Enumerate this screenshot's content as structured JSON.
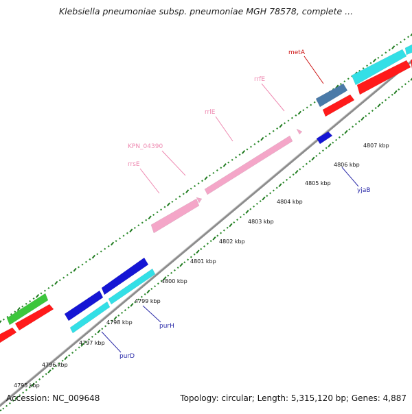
{
  "title": "Klebsiella pneumoniae subsp. pneumoniae MGH 78578, complete ...",
  "footer": {
    "accession": "Accession: NC_009648",
    "summary": "Topology: circular; Length: 5,315,120 bp; Genes: 4,887"
  },
  "colors": {
    "backbone": "#8c8c8c",
    "tick_major": "#1f7a1f",
    "tick_minor": "#2e8b2e",
    "rna": "#f4a6c8",
    "red": "#ff1a1a",
    "cyan": "#33dfe6",
    "blue": "#1515d4",
    "green": "#3cc63c",
    "steel": "#4a7aa8",
    "label_pink": "#ee88b0",
    "label_blue": "#2a2aa8",
    "label_red": "#cc1111"
  },
  "scale_labels": [
    {
      "text": "4795 kbp",
      "kbp": 4795
    },
    {
      "text": "4796 kbp",
      "kbp": 4796
    },
    {
      "text": "4797 kbp",
      "kbp": 4797
    },
    {
      "text": "4798 kbp",
      "kbp": 4798
    },
    {
      "text": "4799 kbp",
      "kbp": 4799
    },
    {
      "text": "4800 kbp",
      "kbp": 4800
    },
    {
      "text": "4801 kbp",
      "kbp": 4801
    },
    {
      "text": "4802 kbp",
      "kbp": 4802
    },
    {
      "text": "4803 kbp",
      "kbp": 4803
    },
    {
      "text": "4804 kbp",
      "kbp": 4804
    },
    {
      "text": "4805 kbp",
      "kbp": 4805
    },
    {
      "text": "4806 kbp",
      "kbp": 4806
    },
    {
      "text": "4807 kbp",
      "kbp": 4807
    }
  ],
  "gene_labels": [
    {
      "name": "metA",
      "kind": "red"
    },
    {
      "name": "rrfE",
      "kind": "pink"
    },
    {
      "name": "rrlE",
      "kind": "pink"
    },
    {
      "name": "KPN_04390",
      "kind": "pink"
    },
    {
      "name": "rrsE",
      "kind": "pink"
    },
    {
      "name": "yjaB",
      "kind": "blue"
    },
    {
      "name": "purH",
      "kind": "blue"
    },
    {
      "name": "purD",
      "kind": "blue"
    }
  ]
}
